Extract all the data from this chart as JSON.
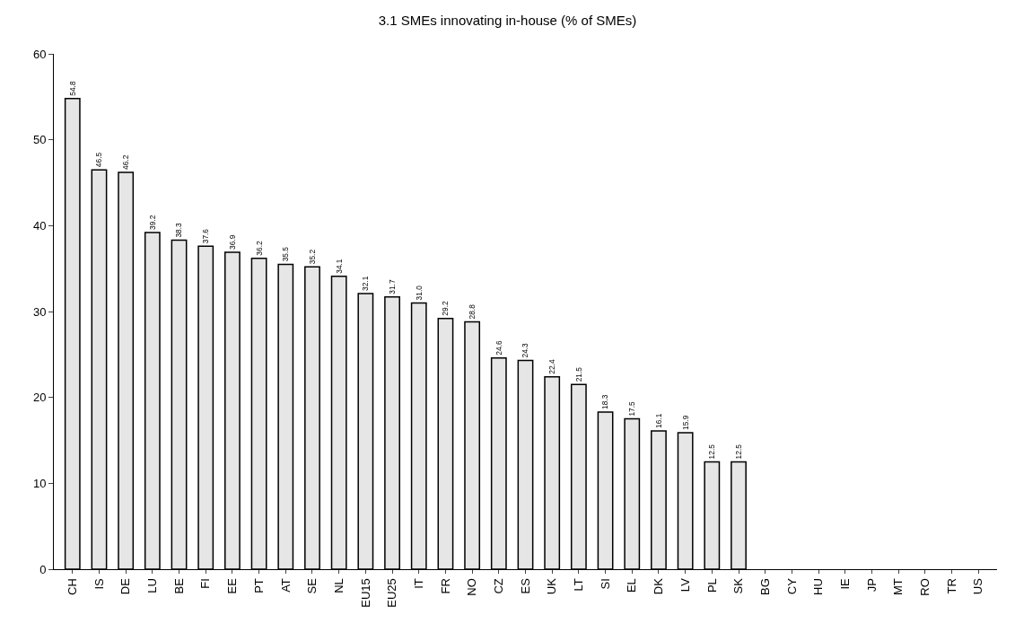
{
  "chart_data": {
    "type": "bar",
    "title": "3.1 SMEs innovating in-house (% of SMEs)",
    "categories": [
      "CH",
      "IS",
      "DE",
      "LU",
      "BE",
      "FI",
      "EE",
      "PT",
      "AT",
      "SE",
      "NL",
      "EU15",
      "EU25",
      "IT",
      "FR",
      "NO",
      "CZ",
      "ES",
      "UK",
      "LT",
      "SI",
      "EL",
      "DK",
      "LV",
      "PL",
      "SK",
      "BG",
      "CY",
      "HU",
      "IE",
      "JP",
      "MT",
      "RO",
      "TR",
      "US"
    ],
    "values": [
      54.8,
      46.5,
      46.2,
      39.2,
      38.3,
      37.6,
      36.9,
      36.2,
      35.5,
      35.2,
      34.1,
      32.1,
      31.7,
      31.0,
      29.2,
      28.8,
      24.6,
      24.3,
      22.4,
      21.5,
      18.3,
      17.5,
      16.1,
      15.9,
      12.5,
      12.5,
      null,
      null,
      null,
      null,
      null,
      null,
      null,
      null,
      null
    ],
    "value_labels": [
      "54.8",
      "46.5",
      "46.2",
      "39.2",
      "38.3",
      "37.6",
      "36.9",
      "36.2",
      "35.5",
      "35.2",
      "34.1",
      "32.1",
      "31.7",
      "31.0",
      "29.2",
      "28.8",
      "24.6",
      "24.3",
      "22.4",
      "21.5",
      "18.3",
      "17.5",
      "16.1",
      "15.9",
      "12.5",
      "12.5",
      null,
      null,
      null,
      null,
      null,
      null,
      null,
      null,
      null
    ],
    "color": "#e6e6e6",
    "ylim": [
      0,
      60
    ],
    "yticks": [
      0,
      10,
      20,
      30,
      40,
      50,
      60
    ],
    "grid": false,
    "legend": false
  }
}
